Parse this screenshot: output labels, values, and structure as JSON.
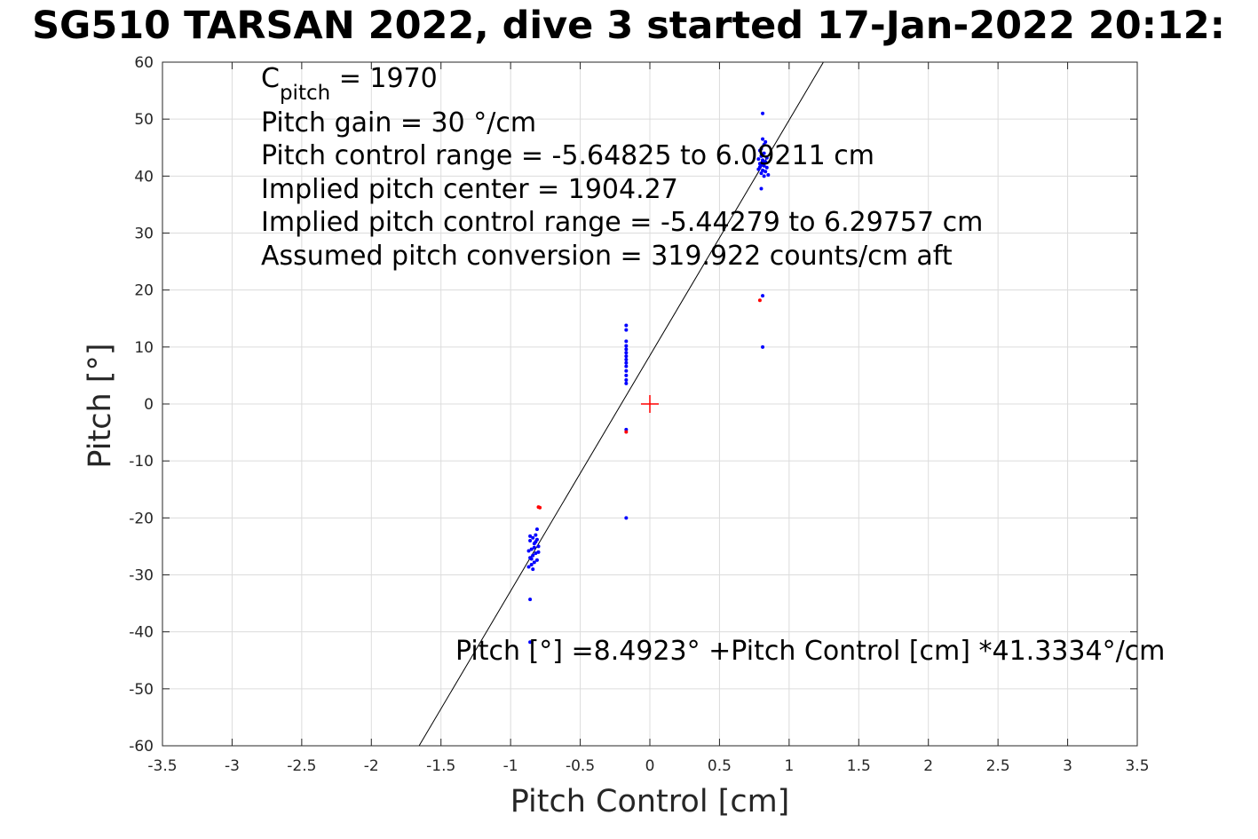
{
  "chart_data": {
    "type": "scatter",
    "title": "SG510 TARSAN 2022, dive 3 started 17-Jan-2022 20:12:",
    "xlabel": "Pitch Control [cm]",
    "ylabel": "Pitch [°]",
    "xlim": [
      -3.5,
      3.5
    ],
    "ylim": [
      -60,
      60
    ],
    "xticks": [
      -3.5,
      -3,
      -2.5,
      -2,
      -1.5,
      -1,
      -0.5,
      0,
      0.5,
      1,
      1.5,
      2,
      2.5,
      3,
      3.5
    ],
    "xtick_labels": [
      "-3.5",
      "-3",
      "-2.5",
      "-2",
      "-1.5",
      "-1",
      "-0.5",
      "0",
      "0.5",
      "1",
      "1.5",
      "2",
      "2.5",
      "3",
      "3.5"
    ],
    "yticks": [
      -60,
      -50,
      -40,
      -30,
      -20,
      -10,
      0,
      10,
      20,
      30,
      40,
      50,
      60
    ],
    "ytick_labels": [
      "-60",
      "-50",
      "-40",
      "-30",
      "-20",
      "-10",
      "0",
      "10",
      "20",
      "30",
      "40",
      "50",
      "60"
    ],
    "grid": true,
    "series": [
      {
        "color": "#0000ff",
        "marker": "dot",
        "points": [
          [
            0.81,
            51.0
          ],
          [
            0.81,
            46.5
          ],
          [
            0.83,
            46.0
          ],
          [
            0.79,
            44.5
          ],
          [
            0.82,
            44.0
          ],
          [
            0.8,
            43.5
          ],
          [
            0.78,
            43.0
          ],
          [
            0.81,
            42.8
          ],
          [
            0.83,
            42.5
          ],
          [
            0.79,
            42.2
          ],
          [
            0.8,
            42.0
          ],
          [
            0.82,
            41.8
          ],
          [
            0.84,
            41.5
          ],
          [
            0.78,
            41.2
          ],
          [
            0.81,
            41.0
          ],
          [
            0.83,
            40.8
          ],
          [
            0.8,
            40.5
          ],
          [
            0.85,
            40.2
          ],
          [
            0.82,
            40.0
          ],
          [
            0.79,
            41.6
          ],
          [
            0.81,
            42.6
          ],
          [
            0.84,
            43.2
          ],
          [
            0.8,
            44.8
          ],
          [
            0.82,
            45.5
          ],
          [
            0.8,
            37.8
          ],
          [
            0.81,
            19.0
          ],
          [
            0.81,
            10.0
          ],
          [
            -0.17,
            13.8
          ],
          [
            -0.17,
            13.0
          ],
          [
            -0.17,
            11.0
          ],
          [
            -0.17,
            10.2
          ],
          [
            -0.17,
            9.6
          ],
          [
            -0.17,
            9.0
          ],
          [
            -0.17,
            8.4
          ],
          [
            -0.17,
            7.8
          ],
          [
            -0.17,
            7.2
          ],
          [
            -0.17,
            6.6
          ],
          [
            -0.17,
            5.8
          ],
          [
            -0.17,
            5.0
          ],
          [
            -0.17,
            4.2
          ],
          [
            -0.17,
            3.6
          ],
          [
            -0.17,
            -4.5
          ],
          [
            -0.17,
            -20.0
          ],
          [
            -0.81,
            -22.0
          ],
          [
            -0.82,
            -23.0
          ],
          [
            -0.84,
            -23.5
          ],
          [
            -0.86,
            -24.0
          ],
          [
            -0.83,
            -24.5
          ],
          [
            -0.8,
            -25.0
          ],
          [
            -0.85,
            -25.5
          ],
          [
            -0.87,
            -25.8
          ],
          [
            -0.82,
            -26.2
          ],
          [
            -0.84,
            -26.6
          ],
          [
            -0.86,
            -27.0
          ],
          [
            -0.81,
            -27.4
          ],
          [
            -0.83,
            -27.8
          ],
          [
            -0.85,
            -28.2
          ],
          [
            -0.87,
            -28.6
          ],
          [
            -0.84,
            -29.0
          ],
          [
            -0.82,
            -24.2
          ],
          [
            -0.8,
            -26.0
          ],
          [
            -0.86,
            -23.2
          ],
          [
            -0.83,
            -25.2
          ],
          [
            -0.85,
            -27.2
          ],
          [
            -0.81,
            -23.8
          ],
          [
            -0.86,
            -34.3
          ],
          [
            -0.86,
            -41.8
          ]
        ]
      },
      {
        "color": "#ff0000",
        "marker": "dot",
        "points": [
          [
            0.79,
            18.2
          ],
          [
            -0.17,
            -4.9
          ],
          [
            -0.79,
            -18.2
          ],
          [
            -0.8,
            -18.1
          ]
        ]
      }
    ],
    "center_marker": {
      "x": 0,
      "y": 0,
      "color": "#ff0000",
      "marker": "plus"
    },
    "fit_line": {
      "intercept": 8.4923,
      "slope": 41.3334,
      "color": "#000000"
    },
    "annotations": {
      "c_pitch_main": "C",
      "c_pitch_sub": "pitch",
      "c_pitch_rest": " = 1970",
      "pitch_gain": "Pitch gain = 30 °/cm",
      "control_range": "Pitch control range = -5.64825 to 6.09211 cm",
      "pitch_center": "Implied pitch center = 1904.27",
      "implied_range": "Implied pitch control range = -5.44279 to 6.29757 cm",
      "conversion": "Assumed pitch conversion = 319.922 counts/cm aft",
      "fit_equation": "Pitch [°] =8.4923° +Pitch Control [cm] *41.3334°/cm"
    }
  }
}
